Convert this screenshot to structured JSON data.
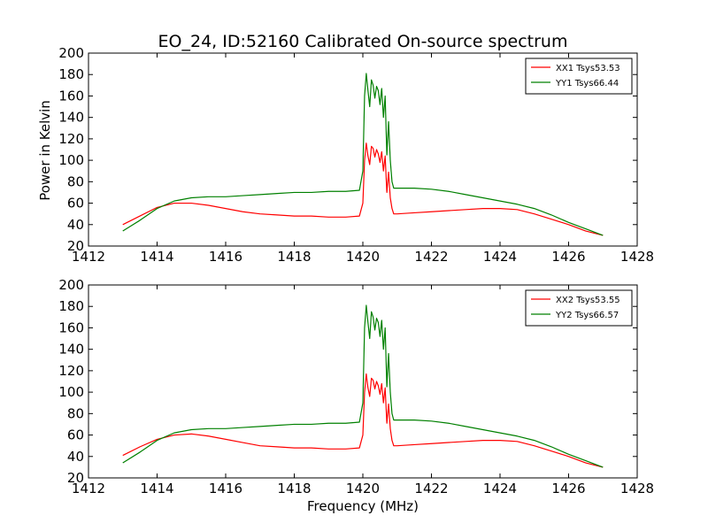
{
  "chart_data": {
    "type": "line",
    "title": "EO_24, ID:52160 Calibrated On-source spectrum",
    "xlabel": "Frequency (MHz)",
    "ylabel": "Power in Kelvin",
    "colors": {
      "red": "#ff0000",
      "green": "#008000"
    },
    "panels": [
      {
        "xlim": [
          1412,
          1428
        ],
        "ylim": [
          20,
          200
        ],
        "xticks": [
          1412,
          1414,
          1416,
          1418,
          1420,
          1422,
          1424,
          1426,
          1428
        ],
        "yticks": [
          20,
          40,
          60,
          80,
          100,
          120,
          140,
          160,
          180,
          200
        ],
        "legend_position": "top-right",
        "grid": false,
        "series": [
          {
            "name": "XX1 Tsys53.53",
            "color": "#ff0000",
            "x": [
              1413.0,
              1413.5,
              1414.0,
              1414.5,
              1415.0,
              1415.5,
              1416.0,
              1416.5,
              1417.0,
              1417.5,
              1418.0,
              1418.5,
              1419.0,
              1419.5,
              1419.9,
              1420.0,
              1420.05,
              1420.1,
              1420.15,
              1420.2,
              1420.25,
              1420.3,
              1420.35,
              1420.4,
              1420.45,
              1420.5,
              1420.55,
              1420.6,
              1420.65,
              1420.7,
              1420.75,
              1420.8,
              1420.85,
              1420.9,
              1421.0,
              1421.5,
              1422.0,
              1422.5,
              1423.0,
              1423.5,
              1424.0,
              1424.5,
              1425.0,
              1425.5,
              1426.0,
              1426.5,
              1427.0
            ],
            "y": [
              40,
              48,
              56,
              60,
              60,
              58,
              55,
              52,
              50,
              49,
              48,
              48,
              47,
              47,
              48,
              60,
              100,
              116,
              104,
              96,
              113,
              111,
              103,
              110,
              106,
              98,
              108,
              90,
              104,
              70,
              89,
              65,
              55,
              50,
              50,
              51,
              52,
              53,
              54,
              55,
              55,
              54,
              50,
              45,
              40,
              34,
              30
            ]
          },
          {
            "name": "YY1 Tsys66.44",
            "color": "#008000",
            "x": [
              1413.0,
              1413.5,
              1414.0,
              1414.5,
              1415.0,
              1415.5,
              1416.0,
              1416.5,
              1417.0,
              1417.5,
              1418.0,
              1418.5,
              1419.0,
              1419.5,
              1419.9,
              1420.0,
              1420.05,
              1420.1,
              1420.15,
              1420.2,
              1420.25,
              1420.3,
              1420.35,
              1420.4,
              1420.45,
              1420.5,
              1420.55,
              1420.6,
              1420.65,
              1420.7,
              1420.75,
              1420.8,
              1420.85,
              1420.9,
              1421.0,
              1421.5,
              1422.0,
              1422.5,
              1423.0,
              1423.5,
              1424.0,
              1424.5,
              1425.0,
              1425.5,
              1426.0,
              1426.5,
              1427.0
            ],
            "y": [
              34,
              44,
              55,
              62,
              65,
              66,
              66,
              67,
              68,
              69,
              70,
              70,
              71,
              71,
              72,
              90,
              160,
              181,
              165,
              150,
              175,
              170,
              158,
              169,
              165,
              152,
              167,
              140,
              160,
              105,
              136,
              100,
              80,
              74,
              74,
              74,
              73,
              71,
              68,
              65,
              62,
              59,
              55,
              49,
              42,
              36,
              30
            ]
          }
        ]
      },
      {
        "xlim": [
          1412,
          1428
        ],
        "ylim": [
          20,
          200
        ],
        "xticks": [
          1412,
          1414,
          1416,
          1418,
          1420,
          1422,
          1424,
          1426,
          1428
        ],
        "yticks": [
          20,
          40,
          60,
          80,
          100,
          120,
          140,
          160,
          180,
          200
        ],
        "legend_position": "top-right",
        "grid": false,
        "series": [
          {
            "name": "XX2 Tsys53.55",
            "color": "#ff0000",
            "x": [
              1413.0,
              1413.5,
              1414.0,
              1414.5,
              1415.0,
              1415.5,
              1416.0,
              1416.5,
              1417.0,
              1417.5,
              1418.0,
              1418.5,
              1419.0,
              1419.5,
              1419.9,
              1420.0,
              1420.05,
              1420.1,
              1420.15,
              1420.2,
              1420.25,
              1420.3,
              1420.35,
              1420.4,
              1420.45,
              1420.5,
              1420.55,
              1420.6,
              1420.65,
              1420.7,
              1420.75,
              1420.8,
              1420.85,
              1420.9,
              1421.0,
              1421.5,
              1422.0,
              1422.5,
              1423.0,
              1423.5,
              1424.0,
              1424.5,
              1425.0,
              1425.5,
              1426.0,
              1426.5,
              1427.0
            ],
            "y": [
              41,
              49,
              56,
              60,
              61,
              59,
              56,
              53,
              50,
              49,
              48,
              48,
              47,
              47,
              48,
              60,
              100,
              117,
              104,
              96,
              113,
              111,
              103,
              110,
              106,
              98,
              108,
              90,
              104,
              71,
              89,
              66,
              55,
              50,
              50,
              51,
              52,
              53,
              54,
              55,
              55,
              54,
              50,
              45,
              40,
              34,
              30
            ]
          },
          {
            "name": "YY2 Tsys66.57",
            "color": "#008000",
            "x": [
              1413.0,
              1413.5,
              1414.0,
              1414.5,
              1415.0,
              1415.5,
              1416.0,
              1416.5,
              1417.0,
              1417.5,
              1418.0,
              1418.5,
              1419.0,
              1419.5,
              1419.9,
              1420.0,
              1420.05,
              1420.1,
              1420.15,
              1420.2,
              1420.25,
              1420.3,
              1420.35,
              1420.4,
              1420.45,
              1420.5,
              1420.55,
              1420.6,
              1420.65,
              1420.7,
              1420.75,
              1420.8,
              1420.85,
              1420.9,
              1421.0,
              1421.5,
              1422.0,
              1422.5,
              1423.0,
              1423.5,
              1424.0,
              1424.5,
              1425.0,
              1425.5,
              1426.0,
              1426.5,
              1427.0
            ],
            "y": [
              34,
              44,
              55,
              62,
              65,
              66,
              66,
              67,
              68,
              69,
              70,
              70,
              71,
              71,
              72,
              90,
              160,
              181,
              165,
              150,
              175,
              170,
              158,
              169,
              165,
              152,
              167,
              140,
              160,
              105,
              136,
              100,
              80,
              74,
              74,
              74,
              73,
              71,
              68,
              65,
              62,
              59,
              55,
              49,
              42,
              36,
              30
            ]
          }
        ]
      }
    ]
  }
}
